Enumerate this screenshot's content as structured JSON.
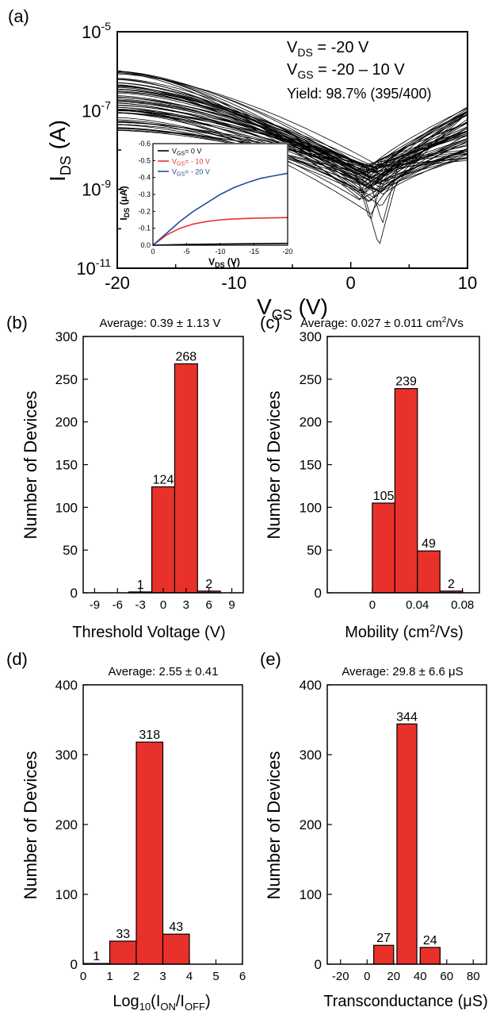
{
  "colors": {
    "bar": "#e8312a",
    "axis": "#000000",
    "curve": "#000000",
    "inset_black": "#000000",
    "inset_red": "#e8312a",
    "inset_blue": "#2a4aa0"
  },
  "chart_data": [
    {
      "panel": "(a)",
      "type": "line",
      "xlabel_main": "V",
      "xlabel_sub": "GS",
      "xlabel_unit": " (V)",
      "ylabel_main": "I",
      "ylabel_sub": "DS",
      "ylabel_unit": " (A)",
      "xlim": [
        -20,
        10
      ],
      "ylim_log10": [
        -11,
        -5
      ],
      "log_y": true,
      "x_ticks": [
        "-20",
        "-10",
        "0",
        "10"
      ],
      "y_ticks_exp": [
        "-5",
        "-7",
        "-9",
        "-11"
      ],
      "ann_vds_main": "V",
      "ann_vds_sub": "DS",
      "ann_vds_val": " = -20 V",
      "ann_vgs_main": "V",
      "ann_vgs_sub": "GS",
      "ann_vgs_val": " = -20 – 10 V",
      "yield_text": "Yield: 98.7% (395/400)",
      "n_curves_drawn": 60,
      "curve_min": {
        "vgs_at_min": 1.8,
        "log_i_min_range": [
          -9.7,
          -8.4
        ]
      },
      "curve_start_log_i_range": [
        -7.7,
        -6.0
      ],
      "curve_end_log_i_range": [
        -8.3,
        -6.9
      ],
      "inset": {
        "type": "line",
        "xlabel_main": "V",
        "xlabel_sub": "DS",
        "xlabel_unit": " (V)",
        "ylabel_main": "I",
        "ylabel_sub": "DS",
        "ylabel_unit": " (μA)",
        "xlim": [
          0,
          -20
        ],
        "ylim": [
          0.0,
          -0.6
        ],
        "x_ticks": [
          "0",
          "-5",
          "-10",
          "-15",
          "-20"
        ],
        "y_ticks": [
          "0.0",
          "-0.1",
          "-0.2",
          "-0.3",
          "-0.4",
          "-0.5",
          "-0.6"
        ],
        "series": [
          {
            "name": "V<sub>GS</sub>=   0 V",
            "label_main": "V",
            "label_sub": "GS",
            "label_val": "=   0 V",
            "color": "#000000",
            "x": [
              0,
              -5,
              -10,
              -15,
              -20
            ],
            "y": [
              0.0,
              -0.004,
              -0.007,
              -0.009,
              -0.011
            ]
          },
          {
            "name": "V<sub>GS</sub>= - 10 V",
            "label_main": "V",
            "label_sub": "GS",
            "label_val": "= - 10 V",
            "color": "#e8312a",
            "x": [
              0,
              -2,
              -4,
              -6,
              -8,
              -10,
              -12,
              -15,
              -20
            ],
            "y": [
              0.0,
              -0.06,
              -0.1,
              -0.125,
              -0.14,
              -0.15,
              -0.155,
              -0.16,
              -0.163
            ]
          },
          {
            "name": "V<sub>GS</sub>= - 20 V",
            "label_main": "V",
            "label_sub": "GS",
            "label_val": "= - 20 V",
            "color": "#2a4aa0",
            "x": [
              0,
              -2,
              -4,
              -6,
              -8,
              -10,
              -12,
              -14,
              -16,
              -18,
              -20
            ],
            "y": [
              0.0,
              -0.07,
              -0.14,
              -0.2,
              -0.25,
              -0.3,
              -0.34,
              -0.37,
              -0.395,
              -0.41,
              -0.425
            ]
          }
        ]
      }
    },
    {
      "panel": "(b)",
      "type": "bar",
      "title": "Average: 0.39 ± 1.13 V",
      "xlabel": "Threshold Voltage (V)",
      "ylabel": "Number of Devices",
      "xlim": [
        -10.5,
        10.5
      ],
      "ylim": [
        0,
        300
      ],
      "x_ticks": [
        "-9",
        "-6",
        "-3",
        "0",
        "3",
        "6",
        "9"
      ],
      "y_ticks": [
        "0",
        "50",
        "100",
        "150",
        "200",
        "250",
        "300"
      ],
      "bin_width": 3,
      "bin_centers": [
        -6,
        -3,
        0,
        3,
        6
      ],
      "values": [
        0,
        1,
        124,
        268,
        2
      ],
      "labels": [
        "",
        "1",
        "124",
        "268",
        "2"
      ]
    },
    {
      "panel": "(c)",
      "type": "bar",
      "title_main": "Average: 0.027 ± 0.011 cm",
      "title_sup": "2",
      "title_end": "/Vs",
      "xlabel_main": "Mobility (cm",
      "xlabel_sup": "2",
      "xlabel_end": "/Vs)",
      "ylabel": "Number of Devices",
      "xlim": [
        -0.04,
        0.095
      ],
      "ylim": [
        0,
        300
      ],
      "x_ticks": [
        "0",
        "0.04",
        "0.08"
      ],
      "y_ticks": [
        "0",
        "50",
        "100",
        "150",
        "200",
        "250",
        "300"
      ],
      "bin_width": 0.02,
      "bin_centers": [
        0.01,
        0.03,
        0.05,
        0.07
      ],
      "values": [
        105,
        239,
        49,
        2
      ],
      "labels": [
        "105",
        "239",
        "49",
        "2"
      ]
    },
    {
      "panel": "(d)",
      "type": "bar",
      "title": "Average: 2.55 ± 0.41",
      "xlabel_main": "Log",
      "xlabel_sub1": "10",
      "xlabel_mid": "(I",
      "xlabel_sub2": "ON",
      "xlabel_mid2": "/I",
      "xlabel_sub3": "OFF",
      "xlabel_end": ")",
      "ylabel": "Number of Devices",
      "xlim": [
        0,
        6
      ],
      "ylim": [
        0,
        400
      ],
      "x_ticks": [
        "0",
        "1",
        "2",
        "3",
        "4",
        "5",
        "6"
      ],
      "y_ticks": [
        "0",
        "100",
        "200",
        "300",
        "400"
      ],
      "bin_width": 1.0,
      "bin_centers": [
        0.5,
        1.5,
        2.5,
        3.5
      ],
      "values": [
        1,
        33,
        318,
        43
      ],
      "labels": [
        "1",
        "33",
        "318",
        "43"
      ]
    },
    {
      "panel": "(e)",
      "type": "bar",
      "title": "Average: 29.8 ± 6.6 μS",
      "xlabel": "Transconductance (μS)",
      "ylabel": "Number of Devices",
      "xlim": [
        -30,
        90
      ],
      "ylim": [
        0,
        400
      ],
      "x_ticks": [
        "-20",
        "0",
        "20",
        "40",
        "60",
        "80"
      ],
      "y_ticks": [
        "0",
        "100",
        "200",
        "300",
        "400"
      ],
      "bin_width": 15,
      "bin_centers": [
        12.5,
        30,
        47.5
      ],
      "values": [
        27,
        344,
        24
      ],
      "labels": [
        "27",
        "344",
        "24"
      ]
    }
  ]
}
